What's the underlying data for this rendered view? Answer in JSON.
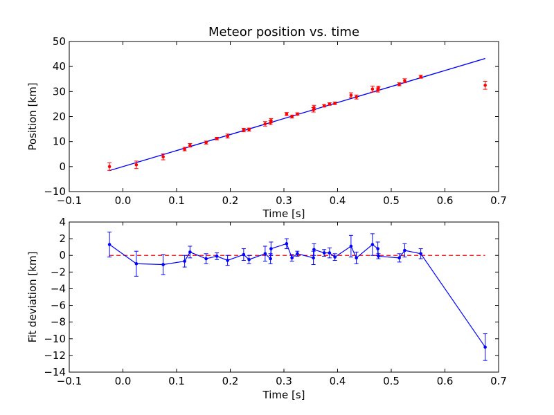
{
  "chart_data": [
    {
      "type": "scatter",
      "title": "Meteor position vs. time",
      "xlabel": "Time [s]",
      "ylabel": "Position [km]",
      "xlim": [
        -0.1,
        0.7
      ],
      "ylim": [
        -10,
        50
      ],
      "xticks": [
        -0.1,
        0.0,
        0.1,
        0.2,
        0.3,
        0.4,
        0.5,
        0.6,
        0.7
      ],
      "yticks": [
        -10,
        0,
        10,
        20,
        30,
        40,
        50
      ],
      "xtick_labels": [
        "−0.1",
        "0.0",
        "0.1",
        "0.2",
        "0.3",
        "0.4",
        "0.5",
        "0.6",
        "0.7"
      ],
      "ytick_labels": [
        "−10",
        "0",
        "10",
        "20",
        "30",
        "40",
        "50"
      ],
      "point_color": "#ff0000",
      "errorbar_color": "#ff0000",
      "fit_color": "#0000ff",
      "points": [
        {
          "x": -0.025,
          "y": 0.0,
          "err": 1.5
        },
        {
          "x": 0.025,
          "y": 0.7,
          "err": 1.5
        },
        {
          "x": 0.075,
          "y": 3.9,
          "err": 1.2
        },
        {
          "x": 0.115,
          "y": 7.0,
          "err": 0.7
        },
        {
          "x": 0.125,
          "y": 8.5,
          "err": 0.7
        },
        {
          "x": 0.155,
          "y": 9.6,
          "err": 0.6
        },
        {
          "x": 0.175,
          "y": 11.2,
          "err": 0.5
        },
        {
          "x": 0.195,
          "y": 12.2,
          "err": 0.8
        },
        {
          "x": 0.225,
          "y": 14.6,
          "err": 0.7
        },
        {
          "x": 0.235,
          "y": 14.8,
          "err": 0.6
        },
        {
          "x": 0.265,
          "y": 17.1,
          "err": 0.9
        },
        {
          "x": 0.275,
          "y": 17.6,
          "err": 0.8
        },
        {
          "x": 0.276,
          "y": 18.4,
          "err": 0.8
        },
        {
          "x": 0.305,
          "y": 21.0,
          "err": 0.6
        },
        {
          "x": 0.315,
          "y": 20.0,
          "err": 0.6
        },
        {
          "x": 0.325,
          "y": 21.0,
          "err": 0.5
        },
        {
          "x": 0.355,
          "y": 22.7,
          "err": 0.9
        },
        {
          "x": 0.356,
          "y": 23.6,
          "err": 0.9
        },
        {
          "x": 0.375,
          "y": 24.3,
          "err": 0.5
        },
        {
          "x": 0.385,
          "y": 25.0,
          "err": 0.5
        },
        {
          "x": 0.395,
          "y": 25.3,
          "err": 0.5
        },
        {
          "x": 0.425,
          "y": 28.5,
          "err": 1.0
        },
        {
          "x": 0.435,
          "y": 27.8,
          "err": 0.8
        },
        {
          "x": 0.465,
          "y": 31.0,
          "err": 1.2
        },
        {
          "x": 0.475,
          "y": 30.6,
          "err": 0.8
        },
        {
          "x": 0.476,
          "y": 31.4,
          "err": 0.7
        },
        {
          "x": 0.515,
          "y": 32.9,
          "err": 0.6
        },
        {
          "x": 0.525,
          "y": 34.3,
          "err": 0.8
        },
        {
          "x": 0.555,
          "y": 35.9,
          "err": 0.6
        },
        {
          "x": 0.675,
          "y": 32.5,
          "err": 1.6
        }
      ],
      "fit_line": {
        "x": [
          -0.025,
          0.675
        ],
        "y": [
          -1.6,
          43.2
        ]
      }
    },
    {
      "type": "line",
      "title": "",
      "xlabel": "Time [s]",
      "ylabel": "Fit deviation [km]",
      "xlim": [
        -0.1,
        0.7
      ],
      "ylim": [
        -14,
        4
      ],
      "xticks": [
        -0.1,
        0.0,
        0.1,
        0.2,
        0.3,
        0.4,
        0.5,
        0.6,
        0.7
      ],
      "yticks": [
        -14,
        -12,
        -10,
        -8,
        -6,
        -4,
        -2,
        0,
        2,
        4
      ],
      "xtick_labels": [
        "−0.1",
        "0.0",
        "0.1",
        "0.2",
        "0.3",
        "0.4",
        "0.5",
        "0.6",
        "0.7"
      ],
      "ytick_labels": [
        "−14",
        "−12",
        "−10",
        "−8",
        "−6",
        "−4",
        "−2",
        "0",
        "2",
        "4"
      ],
      "line_color": "#0000ff",
      "reference_line": {
        "y": 0,
        "color": "#ff0000",
        "style": "dashed"
      },
      "points": [
        {
          "x": -0.025,
          "y": 1.3,
          "err": 1.5
        },
        {
          "x": 0.025,
          "y": -1.0,
          "err": 1.5
        },
        {
          "x": 0.075,
          "y": -1.1,
          "err": 1.2
        },
        {
          "x": 0.115,
          "y": -0.7,
          "err": 0.7
        },
        {
          "x": 0.125,
          "y": 0.4,
          "err": 0.7
        },
        {
          "x": 0.155,
          "y": -0.4,
          "err": 0.6
        },
        {
          "x": 0.175,
          "y": -0.1,
          "err": 0.4
        },
        {
          "x": 0.195,
          "y": -0.6,
          "err": 0.6
        },
        {
          "x": 0.225,
          "y": 0.1,
          "err": 0.7
        },
        {
          "x": 0.235,
          "y": -0.5,
          "err": 0.5
        },
        {
          "x": 0.265,
          "y": 0.2,
          "err": 0.9
        },
        {
          "x": 0.275,
          "y": -0.4,
          "err": 0.6
        },
        {
          "x": 0.276,
          "y": 0.8,
          "err": 0.8
        },
        {
          "x": 0.305,
          "y": 1.4,
          "err": 0.6
        },
        {
          "x": 0.315,
          "y": -0.3,
          "err": 0.4
        },
        {
          "x": 0.325,
          "y": 0.2,
          "err": 0.3
        },
        {
          "x": 0.355,
          "y": -0.3,
          "err": 0.8
        },
        {
          "x": 0.356,
          "y": 0.7,
          "err": 0.7
        },
        {
          "x": 0.375,
          "y": 0.3,
          "err": 0.4
        },
        {
          "x": 0.385,
          "y": 0.3,
          "err": 0.6
        },
        {
          "x": 0.395,
          "y": -0.2,
          "err": 0.4
        },
        {
          "x": 0.425,
          "y": 1.1,
          "err": 1.3
        },
        {
          "x": 0.435,
          "y": -0.3,
          "err": 0.7
        },
        {
          "x": 0.465,
          "y": 1.3,
          "err": 1.3
        },
        {
          "x": 0.475,
          "y": 0.8,
          "err": 0.8
        },
        {
          "x": 0.476,
          "y": -0.1,
          "err": 0.3
        },
        {
          "x": 0.515,
          "y": -0.3,
          "err": 0.5
        },
        {
          "x": 0.525,
          "y": 0.6,
          "err": 0.8
        },
        {
          "x": 0.555,
          "y": 0.2,
          "err": 0.6
        },
        {
          "x": 0.675,
          "y": -11.0,
          "err": 1.6
        }
      ]
    }
  ]
}
